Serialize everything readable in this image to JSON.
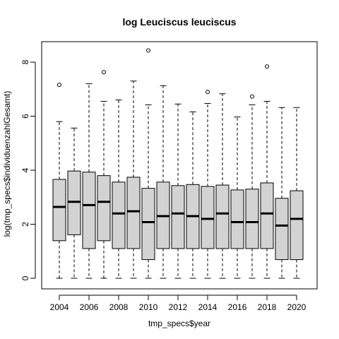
{
  "chart_data": {
    "type": "boxplot",
    "title": "log Leuciscus leuciscus",
    "xlabel": "tmp_specs$year",
    "ylabel": "log(tmp_specs$individuenzahlGesamt)",
    "ylim": [
      -0.35,
      8.6
    ],
    "y_ticks": [
      0,
      2,
      4,
      6,
      8
    ],
    "x_tick_labels": [
      "2004",
      "2006",
      "2008",
      "2010",
      "2012",
      "2014",
      "2016",
      "2018",
      "2020"
    ],
    "box_fill": "#d3d3d3",
    "grid": false,
    "series": [
      {
        "year": "2004",
        "min": 0,
        "q1": 1.39,
        "median": 2.64,
        "q3": 3.66,
        "max": 5.8,
        "outliers": [
          7.16
        ]
      },
      {
        "year": "2005",
        "min": 0,
        "q1": 1.61,
        "median": 2.83,
        "q3": 3.97,
        "max": 5.56,
        "outliers": []
      },
      {
        "year": "2006",
        "min": 0,
        "q1": 1.1,
        "median": 2.71,
        "q3": 3.93,
        "max": 7.2,
        "outliers": []
      },
      {
        "year": "2007",
        "min": 0,
        "q1": 1.39,
        "median": 2.83,
        "q3": 3.8,
        "max": 6.55,
        "outliers": [
          7.63
        ]
      },
      {
        "year": "2008",
        "min": 0,
        "q1": 1.1,
        "median": 2.4,
        "q3": 3.56,
        "max": 6.6,
        "outliers": []
      },
      {
        "year": "2009",
        "min": 0,
        "q1": 1.1,
        "median": 2.48,
        "q3": 3.74,
        "max": 7.3,
        "outliers": []
      },
      {
        "year": "2010",
        "min": 0,
        "q1": 0.69,
        "median": 2.08,
        "q3": 3.33,
        "max": 6.42,
        "outliers": [
          8.43
        ]
      },
      {
        "year": "2011",
        "min": 0,
        "q1": 1.1,
        "median": 2.3,
        "q3": 3.56,
        "max": 7.13,
        "outliers": []
      },
      {
        "year": "2012",
        "min": 0,
        "q1": 1.1,
        "median": 2.4,
        "q3": 3.43,
        "max": 6.45,
        "outliers": []
      },
      {
        "year": "2013",
        "min": 0,
        "q1": 1.1,
        "median": 2.3,
        "q3": 3.47,
        "max": 6.16,
        "outliers": []
      },
      {
        "year": "2014",
        "min": 0,
        "q1": 1.1,
        "median": 2.2,
        "q3": 3.4,
        "max": 6.47,
        "outliers": [
          6.9
        ]
      },
      {
        "year": "2015",
        "min": 0,
        "q1": 1.1,
        "median": 2.4,
        "q3": 3.45,
        "max": 6.83,
        "outliers": []
      },
      {
        "year": "2016",
        "min": 0,
        "q1": 1.1,
        "median": 2.08,
        "q3": 3.27,
        "max": 5.97,
        "outliers": []
      },
      {
        "year": "2017",
        "min": 0,
        "q1": 1.1,
        "median": 2.08,
        "q3": 3.3,
        "max": 6.42,
        "outliers": [
          6.73
        ]
      },
      {
        "year": "2018",
        "min": 0,
        "q1": 1.1,
        "median": 2.4,
        "q3": 3.53,
        "max": 6.55,
        "outliers": [
          7.84
        ]
      },
      {
        "year": "2019",
        "min": 0,
        "q1": 0.69,
        "median": 1.95,
        "q3": 2.96,
        "max": 6.32,
        "outliers": []
      },
      {
        "year": "2020",
        "min": 0,
        "q1": 0.69,
        "median": 2.2,
        "q3": 3.24,
        "max": 6.32,
        "outliers": []
      }
    ]
  }
}
